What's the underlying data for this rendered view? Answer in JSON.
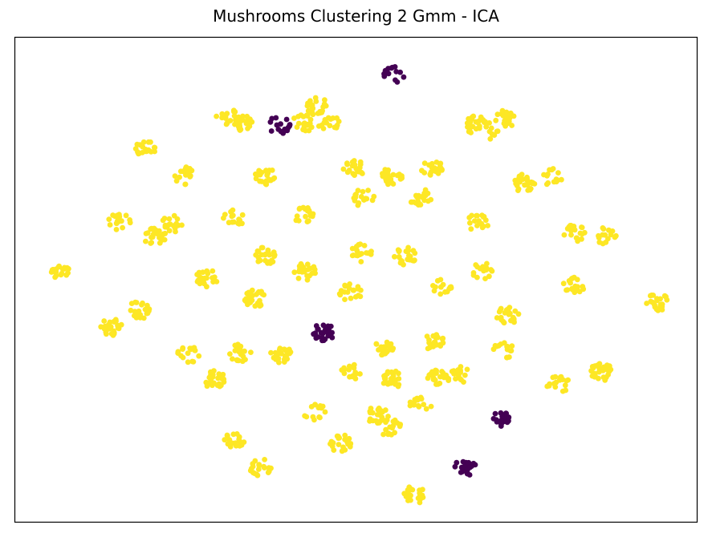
{
  "chart_data": {
    "type": "scatter",
    "title": "Mushrooms Clustering 2 Gmm - ICA",
    "xlabel": "",
    "ylabel": "",
    "xlim": [
      0,
      100
    ],
    "ylim": [
      0,
      100
    ],
    "grid": false,
    "ticks": false,
    "colors": {
      "cluster_0": "#440154",
      "cluster_1": "#fde725"
    },
    "clusters": [
      {
        "x": 55.7,
        "y": 92.3,
        "c": 0
      },
      {
        "x": 33.6,
        "y": 82.0,
        "c": 1
      },
      {
        "x": 30.9,
        "y": 83.8,
        "c": 1
      },
      {
        "x": 38.7,
        "y": 81.9,
        "c": 0
      },
      {
        "x": 44.3,
        "y": 85.8,
        "c": 1
      },
      {
        "x": 42.2,
        "y": 82.2,
        "c": 1
      },
      {
        "x": 46.2,
        "y": 81.9,
        "c": 1
      },
      {
        "x": 67.4,
        "y": 82.0,
        "c": 1
      },
      {
        "x": 69.3,
        "y": 80.8,
        "c": 1
      },
      {
        "x": 71.7,
        "y": 83.1,
        "c": 1
      },
      {
        "x": 19.1,
        "y": 76.9,
        "c": 1
      },
      {
        "x": 25.0,
        "y": 71.4,
        "c": 1
      },
      {
        "x": 36.8,
        "y": 71.2,
        "c": 1
      },
      {
        "x": 49.7,
        "y": 72.9,
        "c": 1
      },
      {
        "x": 55.2,
        "y": 71.2,
        "c": 1
      },
      {
        "x": 61.1,
        "y": 72.9,
        "c": 1
      },
      {
        "x": 74.6,
        "y": 70.0,
        "c": 1
      },
      {
        "x": 79.0,
        "y": 71.1,
        "c": 1
      },
      {
        "x": 15.3,
        "y": 61.9,
        "c": 1
      },
      {
        "x": 22.9,
        "y": 61.6,
        "c": 1
      },
      {
        "x": 32.2,
        "y": 62.6,
        "c": 1
      },
      {
        "x": 42.4,
        "y": 63.2,
        "c": 1
      },
      {
        "x": 51.1,
        "y": 66.8,
        "c": 1
      },
      {
        "x": 59.5,
        "y": 66.9,
        "c": 1
      },
      {
        "x": 67.8,
        "y": 61.7,
        "c": 1
      },
      {
        "x": 82.1,
        "y": 59.7,
        "c": 1
      },
      {
        "x": 86.5,
        "y": 59.2,
        "c": 1
      },
      {
        "x": 20.5,
        "y": 58.9,
        "c": 1
      },
      {
        "x": 7.0,
        "y": 51.6,
        "c": 1
      },
      {
        "x": 28.2,
        "y": 50.3,
        "c": 1
      },
      {
        "x": 36.8,
        "y": 55.0,
        "c": 1
      },
      {
        "x": 42.5,
        "y": 51.6,
        "c": 1
      },
      {
        "x": 50.8,
        "y": 55.5,
        "c": 1
      },
      {
        "x": 57.2,
        "y": 54.9,
        "c": 1
      },
      {
        "x": 68.3,
        "y": 51.9,
        "c": 1
      },
      {
        "x": 82.0,
        "y": 48.9,
        "c": 1
      },
      {
        "x": 94.1,
        "y": 45.4,
        "c": 1
      },
      {
        "x": 18.2,
        "y": 43.7,
        "c": 1
      },
      {
        "x": 14.1,
        "y": 40.3,
        "c": 1
      },
      {
        "x": 35.2,
        "y": 46.1,
        "c": 1
      },
      {
        "x": 49.2,
        "y": 47.4,
        "c": 1
      },
      {
        "x": 62.4,
        "y": 48.4,
        "c": 1
      },
      {
        "x": 72.2,
        "y": 42.7,
        "c": 1
      },
      {
        "x": 45.2,
        "y": 39.1,
        "c": 0
      },
      {
        "x": 25.5,
        "y": 34.7,
        "c": 1
      },
      {
        "x": 33.0,
        "y": 34.9,
        "c": 1
      },
      {
        "x": 39.1,
        "y": 34.6,
        "c": 1
      },
      {
        "x": 54.1,
        "y": 35.7,
        "c": 1
      },
      {
        "x": 61.2,
        "y": 37.3,
        "c": 1
      },
      {
        "x": 71.7,
        "y": 35.5,
        "c": 1
      },
      {
        "x": 29.2,
        "y": 29.4,
        "c": 1
      },
      {
        "x": 49.2,
        "y": 30.8,
        "c": 1
      },
      {
        "x": 55.4,
        "y": 29.6,
        "c": 1
      },
      {
        "x": 62.1,
        "y": 30.1,
        "c": 1
      },
      {
        "x": 65.2,
        "y": 30.3,
        "c": 1
      },
      {
        "x": 79.6,
        "y": 28.5,
        "c": 1
      },
      {
        "x": 86.0,
        "y": 31.0,
        "c": 1
      },
      {
        "x": 43.9,
        "y": 22.8,
        "c": 1
      },
      {
        "x": 53.2,
        "y": 22.1,
        "c": 1
      },
      {
        "x": 59.5,
        "y": 24.3,
        "c": 1
      },
      {
        "x": 71.4,
        "y": 21.4,
        "c": 0
      },
      {
        "x": 32.0,
        "y": 16.7,
        "c": 1
      },
      {
        "x": 47.8,
        "y": 16.2,
        "c": 1
      },
      {
        "x": 55.0,
        "y": 19.5,
        "c": 1
      },
      {
        "x": 36.0,
        "y": 11.4,
        "c": 1
      },
      {
        "x": 66.0,
        "y": 11.1,
        "c": 0
      },
      {
        "x": 58.5,
        "y": 5.6,
        "c": 1
      }
    ]
  }
}
